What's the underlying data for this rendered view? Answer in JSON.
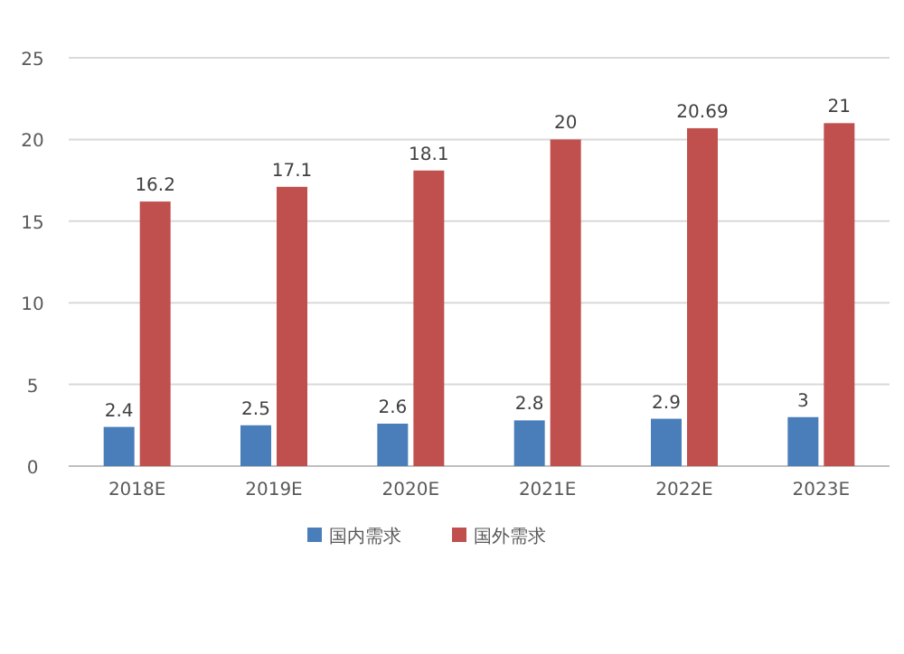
{
  "chart_data": {
    "type": "bar",
    "categories": [
      "2018E",
      "2019E",
      "2020E",
      "2021E",
      "2022E",
      "2023E"
    ],
    "series": [
      {
        "name": "国内需求",
        "color": "#4a7ebb",
        "values": [
          2.4,
          2.5,
          2.6,
          2.8,
          2.9,
          3
        ]
      },
      {
        "name": "国外需求",
        "color": "#c0504d",
        "values": [
          16.2,
          17.1,
          18.1,
          20,
          20.69,
          21
        ]
      }
    ],
    "ylim": [
      0,
      25
    ],
    "yticks": [
      0,
      5,
      10,
      15,
      20,
      25
    ],
    "grid": "y",
    "legend": "bottom",
    "data_labels": true
  }
}
